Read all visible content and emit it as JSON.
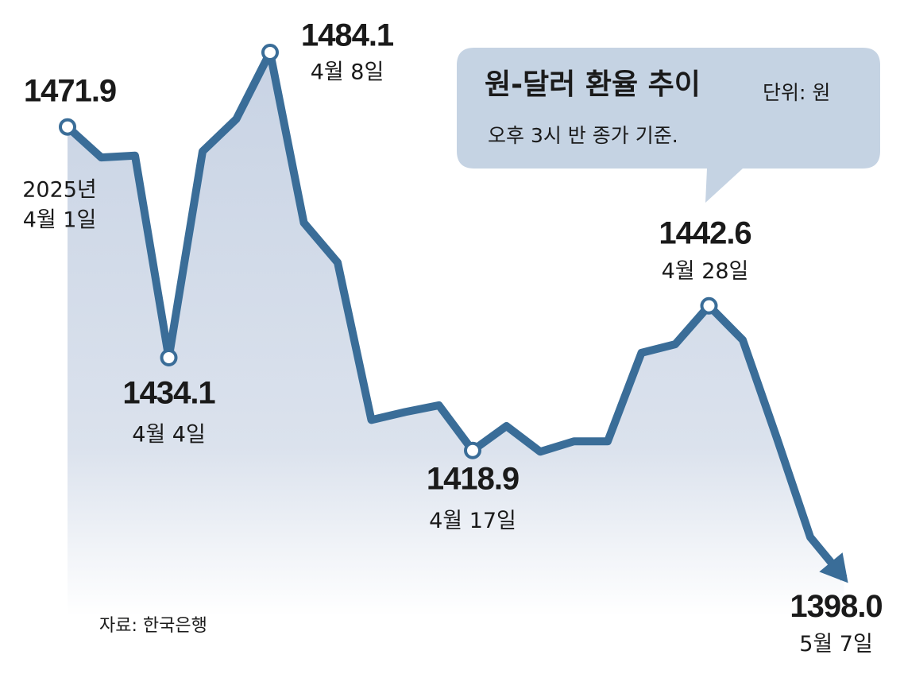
{
  "chart_data": {
    "type": "line",
    "title": "원-달러 환율 추이",
    "unit_note": "단위: 원",
    "subtitle": "오후 3시 반 종가 기준.",
    "source": "자료: 한국은행",
    "color": "#3a6d98",
    "categories": [
      "2025년\n4월 1일",
      null,
      null,
      "4월 4일",
      null,
      null,
      "4월 8일",
      null,
      null,
      null,
      null,
      null,
      "4월 17일",
      null,
      null,
      null,
      null,
      null,
      null,
      "4월 28일",
      null,
      null,
      null,
      "5월 7일"
    ],
    "values": [
      1471.9,
      1466.9,
      1467.2,
      1434.1,
      1467.9,
      1473.2,
      1484.1,
      1456.2,
      1449.7,
      1423.9,
      1425.2,
      1426.3,
      1418.9,
      1422.9,
      1418.7,
      1420.4,
      1420.4,
      1434.9,
      1436.3,
      1442.6,
      1437.0,
      1421.1,
      1404.7,
      1398.0
    ],
    "value_labels": [
      "1471.9",
      null,
      null,
      "1434.1",
      null,
      null,
      "1484.1",
      null,
      null,
      null,
      null,
      null,
      "1418.9",
      null,
      null,
      null,
      null,
      null,
      null,
      "1442.6",
      null,
      null,
      null,
      "1398.0"
    ],
    "ylim": [
      1390,
      1490
    ]
  }
}
